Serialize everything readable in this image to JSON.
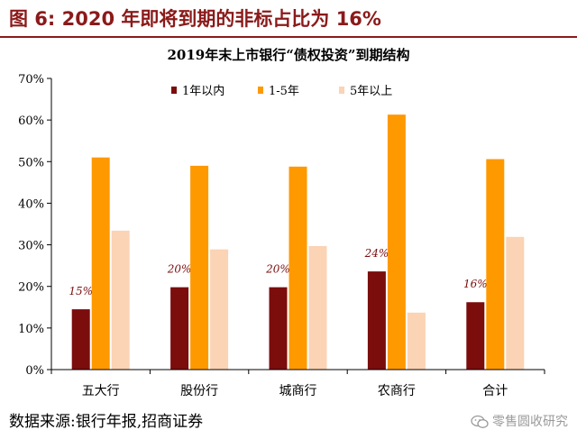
{
  "figure_title": "图 6:  2020 年即将到期的非标占比为 16%",
  "source": "数据来源:银行年报,招商证券",
  "watermark": "零售圆收研究",
  "watermark_icon": "wechat-icon",
  "colors": {
    "title": "#8b1a1a",
    "series_1": "#7b0d0d",
    "series_2": "#ff9900",
    "series_3": "#fbd3b5",
    "label": "#7b0d0d"
  },
  "chart_data": {
    "type": "bar",
    "title": "2019年末上市银行“债权投资”到期结构",
    "categories": [
      "五大行",
      "股份行",
      "城商行",
      "农商行",
      "合计"
    ],
    "series": [
      {
        "name": "1年以内",
        "values": [
          14.5,
          19.8,
          19.8,
          23.6,
          16.2
        ]
      },
      {
        "name": "1-5年",
        "values": [
          51.0,
          49.0,
          48.8,
          61.3,
          50.6
        ]
      },
      {
        "name": "5年以上",
        "values": [
          33.4,
          28.9,
          29.7,
          13.7,
          31.9
        ]
      }
    ],
    "data_labels": [
      "15%",
      "20%",
      "20%",
      "24%",
      "16%"
    ],
    "ylim": [
      0,
      70
    ],
    "yticks": [
      "0%",
      "10%",
      "20%",
      "30%",
      "40%",
      "50%",
      "60%",
      "70%"
    ],
    "grid": false,
    "legend_position": "top-left"
  }
}
